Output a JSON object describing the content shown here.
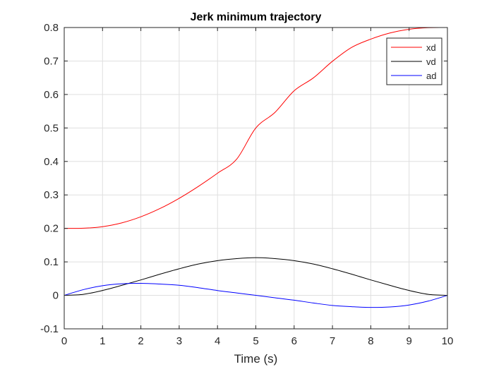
{
  "chart_data": {
    "type": "line",
    "title": "Jerk minimum trajectory",
    "xlabel": "Time (s)",
    "ylabel": "",
    "xlim": [
      0,
      10
    ],
    "ylim": [
      -0.1,
      0.8
    ],
    "xticks": [
      0,
      1,
      2,
      3,
      4,
      5,
      6,
      7,
      8,
      9,
      10
    ],
    "yticks": [
      -0.1,
      0,
      0.1,
      0.2,
      0.3,
      0.4,
      0.5,
      0.6,
      0.7,
      0.8
    ],
    "xtick_labels": [
      "0",
      "1",
      "2",
      "3",
      "4",
      "5",
      "6",
      "7",
      "8",
      "9",
      "10"
    ],
    "ytick_labels": [
      "-0.1",
      "0",
      "0.1",
      "0.2",
      "0.3",
      "0.4",
      "0.5",
      "0.6",
      "0.7",
      "0.8"
    ],
    "grid": true,
    "legend_position": "top-right",
    "x": [
      0,
      0.5,
      1,
      1.5,
      2,
      2.5,
      3,
      3.5,
      4,
      4.5,
      5,
      5.5,
      6,
      6.5,
      7,
      7.5,
      8,
      8.5,
      9,
      9.5,
      10
    ],
    "series": [
      {
        "name": "xd",
        "color": "#ff0000",
        "values": [
          0.2,
          0.2005,
          0.2052,
          0.2164,
          0.2347,
          0.2594,
          0.2899,
          0.3254,
          0.3648,
          0.4068,
          0.5,
          0.5465,
          0.6111,
          0.6494,
          0.6992,
          0.7406,
          0.7653,
          0.7836,
          0.7948,
          0.7995,
          0.8
        ]
      },
      {
        "name": "vd",
        "color": "#000000",
        "values": [
          0,
          0.0031,
          0.0146,
          0.0298,
          0.0461,
          0.0633,
          0.0794,
          0.0936,
          0.1037,
          0.1098,
          0.1125,
          0.1098,
          0.1037,
          0.0936,
          0.0794,
          0.0633,
          0.0461,
          0.0298,
          0.0146,
          0.0031,
          0
        ]
      },
      {
        "name": "ad",
        "color": "#0000ff",
        "values": [
          0,
          0.0171,
          0.0288,
          0.0346,
          0.036,
          0.0338,
          0.0302,
          0.0228,
          0.0144,
          0.0072,
          0,
          -0.0072,
          -0.0144,
          -0.0228,
          -0.0302,
          -0.0338,
          -0.036,
          -0.0346,
          -0.0288,
          -0.0171,
          0
        ]
      }
    ]
  }
}
